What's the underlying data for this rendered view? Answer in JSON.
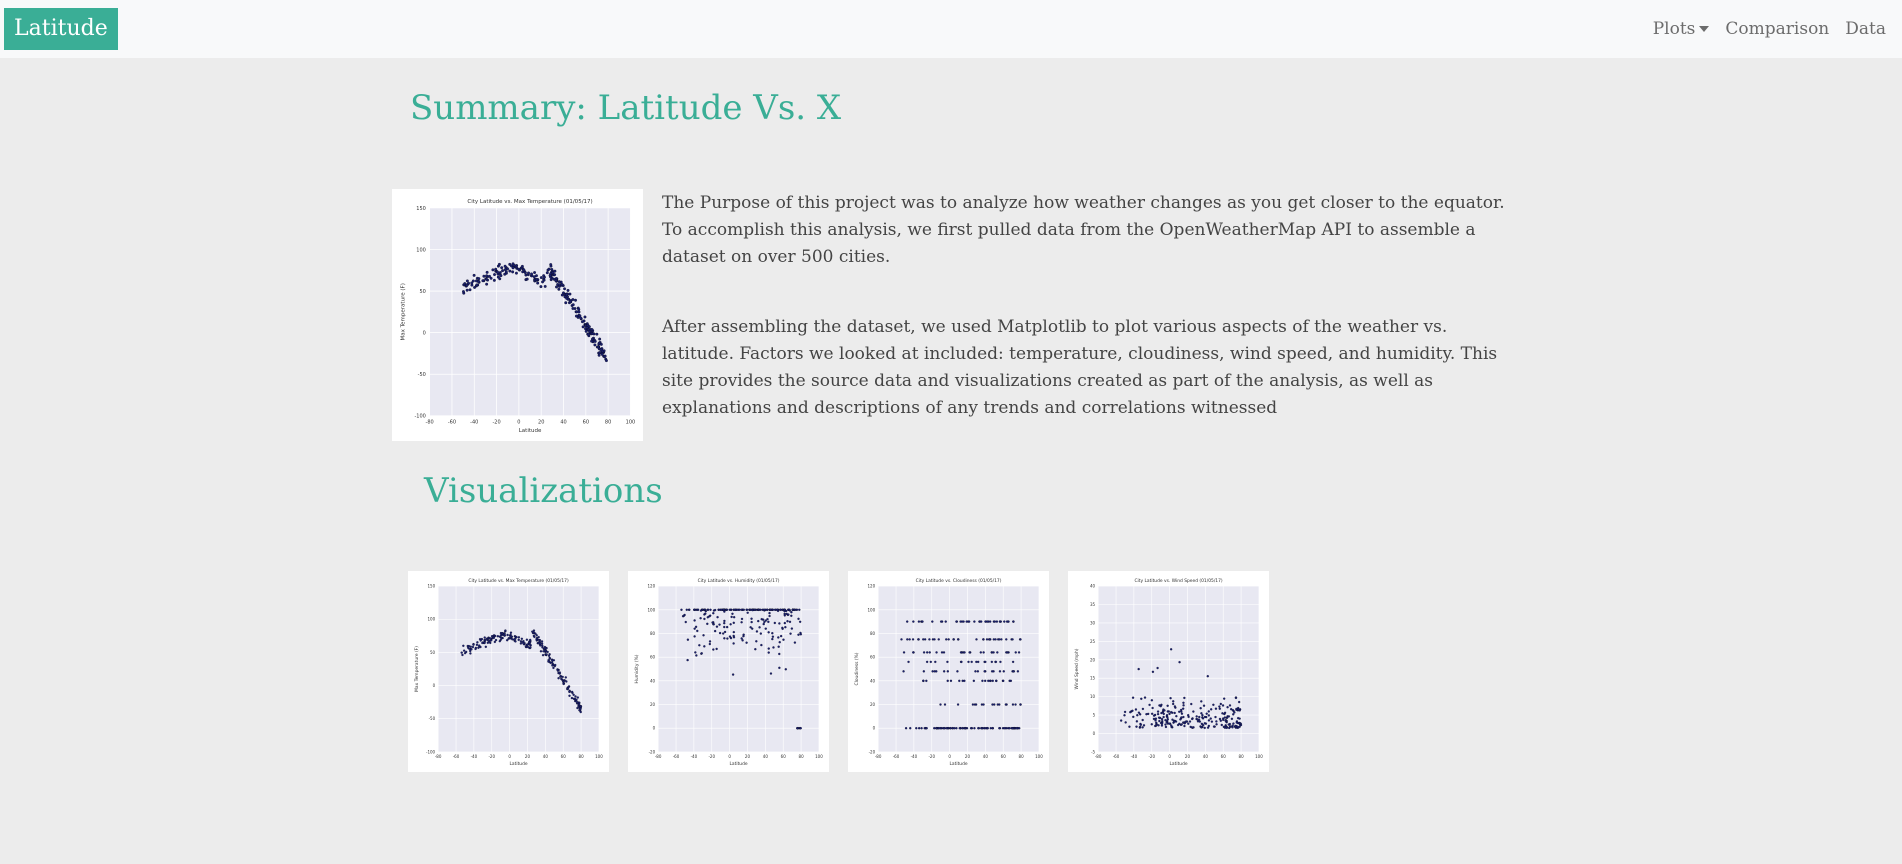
{
  "nav": {
    "brand": "Latitude",
    "links": [
      {
        "label": "Plots",
        "dropdown": true
      },
      {
        "label": "Comparison",
        "dropdown": false
      },
      {
        "label": "Data",
        "dropdown": false
      }
    ]
  },
  "summary": {
    "title": "Summary: Latitude Vs. X",
    "paragraphs": [
      "The Purpose of this project was to analyze how weather changes as you get closer to the equator. To accomplish this analysis, we first pulled data from the OpenWeatherMap API to assemble a dataset on over 500 cities.",
      "After assembling the dataset, we used Matplotlib to plot various aspects of the weather vs. latitude. Factors we looked at included: temperature, cloudiness, wind speed, and humidity. This site provides the source data and visualizations created as part of the analysis, as well as explanations and descriptions of any trends and correlations witnessed"
    ]
  },
  "visualizations": {
    "title": "Visualizations"
  },
  "colors": {
    "accent": "#3aae96",
    "marker": "#1a1f6e",
    "plot_bg": "#e8e8f2",
    "navbar_bg": "#f8f9fa",
    "page_bg": "#ececec"
  },
  "chart_data": [
    {
      "id": "main-temp",
      "type": "scatter",
      "title": "City Latitude vs. Max Temperature (01/05/17)",
      "xlabel": "Latitude",
      "ylabel": "Max Temperature (F)",
      "xlim": [
        -80,
        100
      ],
      "ylim": [
        -100,
        150
      ],
      "xticks": [
        -80,
        -60,
        -40,
        -20,
        0,
        20,
        40,
        60,
        80,
        100
      ],
      "yticks": [
        -100,
        -50,
        0,
        50,
        100,
        150
      ],
      "shape": "temp"
    },
    {
      "id": "thumb-temp",
      "type": "scatter",
      "title": "City Latitude vs. Max Temperature (01/05/17)",
      "xlabel": "Latitude",
      "ylabel": "Max Temperature (F)",
      "xlim": [
        -80,
        100
      ],
      "ylim": [
        -100,
        150
      ],
      "xticks": [
        -80,
        -60,
        -40,
        -20,
        0,
        20,
        40,
        60,
        80,
        100
      ],
      "yticks": [
        -100,
        -50,
        0,
        50,
        100,
        150
      ],
      "shape": "temp"
    },
    {
      "id": "thumb-humidity",
      "type": "scatter",
      "title": "City Latitude vs. Humidity (01/05/17)",
      "xlabel": "Latitude",
      "ylabel": "Humidity (%)",
      "xlim": [
        -80,
        100
      ],
      "ylim": [
        -20,
        120
      ],
      "xticks": [
        -80,
        -60,
        -40,
        -20,
        0,
        20,
        40,
        60,
        80,
        100
      ],
      "yticks": [
        -20,
        0,
        20,
        40,
        60,
        80,
        100,
        120
      ],
      "shape": "humidity"
    },
    {
      "id": "thumb-cloudiness",
      "type": "scatter",
      "title": "City Latitude vs. Cloudiness (01/05/17)",
      "xlabel": "Latitude",
      "ylabel": "Cloudiness (%)",
      "xlim": [
        -80,
        100
      ],
      "ylim": [
        -20,
        120
      ],
      "xticks": [
        -80,
        -60,
        -40,
        -20,
        0,
        20,
        40,
        60,
        80,
        100
      ],
      "yticks": [
        -20,
        0,
        20,
        40,
        60,
        80,
        100,
        120
      ],
      "shape": "cloud"
    },
    {
      "id": "thumb-wind",
      "type": "scatter",
      "title": "City Latitude vs. Wind Speed (01/05/17)",
      "xlabel": "Latitude",
      "ylabel": "Wind Speed (mph)",
      "xlim": [
        -80,
        100
      ],
      "ylim": [
        -5,
        40
      ],
      "xticks": [
        -80,
        -60,
        -40,
        -20,
        0,
        20,
        40,
        60,
        80,
        100
      ],
      "yticks": [
        -5,
        0,
        5,
        10,
        15,
        20,
        25,
        30,
        35,
        40
      ],
      "shape": "wind"
    }
  ]
}
